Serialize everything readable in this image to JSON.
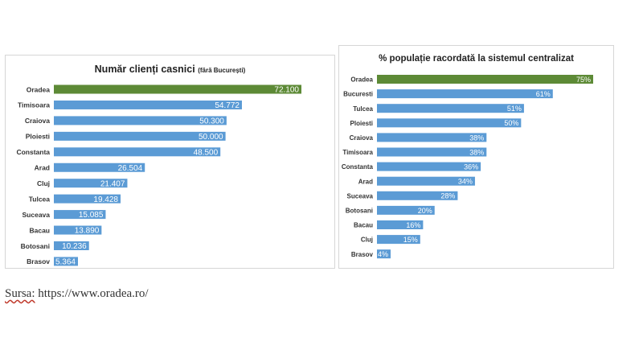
{
  "colors": {
    "highlight": "#5d8a36",
    "bar": "#5b9bd5",
    "label": "#333333"
  },
  "chart_data": [
    {
      "type": "bar",
      "orientation": "horizontal",
      "title": "Număr clienți casnici",
      "subtitle": "(fără București)",
      "categories": [
        "Oradea",
        "Timisoara",
        "Craiova",
        "Ploiesti",
        "Constanta",
        "Arad",
        "Cluj",
        "Tulcea",
        "Suceava",
        "Bacau",
        "Botosani",
        "Brasov"
      ],
      "values": [
        72100,
        54772,
        50300,
        50000,
        48500,
        26504,
        21407,
        19428,
        15085,
        13890,
        10236,
        5364
      ],
      "value_labels": [
        "72.100",
        "54.772",
        "50.300",
        "50.000",
        "48.500",
        "26.504",
        "21.407",
        "19.428",
        "15.085",
        "13.890",
        "10.236",
        "5.364"
      ],
      "xlim": [
        0,
        72100
      ],
      "highlight_index": 0,
      "grid": false,
      "legend": "none"
    },
    {
      "type": "bar",
      "orientation": "horizontal",
      "title": "% populație racordată la sistemul centralizat",
      "categories": [
        "Oradea",
        "Bucuresti",
        "Tulcea",
        "Ploiesti",
        "Craiova",
        "Timisoara",
        "Constanta",
        "Arad",
        "Suceava",
        "Botosani",
        "Bacau",
        "Cluj",
        "Brasov"
      ],
      "values": [
        75,
        61,
        51,
        50,
        38,
        38,
        36,
        34,
        28,
        20,
        16,
        15,
        4
      ],
      "value_labels": [
        "75%",
        "61%",
        "51%",
        "50%",
        "38%",
        "38%",
        "36%",
        "34%",
        "28%",
        "20%",
        "16%",
        "15%",
        "4%"
      ],
      "xlim": [
        0,
        75
      ],
      "highlight_index": 0,
      "grid": false,
      "legend": "none"
    }
  ],
  "source": {
    "label": "Sursa:",
    "url": "https://www.oradea.ro/"
  }
}
